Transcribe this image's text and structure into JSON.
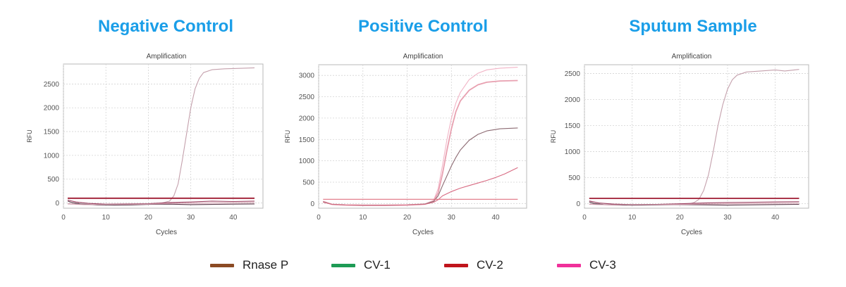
{
  "panels": [
    {
      "title": "Negative Control",
      "chart_data": {
        "type": "line",
        "title": "Amplification",
        "xlabel": "Cycles",
        "ylabel": "RFU",
        "xlim": [
          0,
          47
        ],
        "ylim": [
          -110,
          2920
        ],
        "xticks": [
          0,
          10,
          20,
          30,
          40
        ],
        "yticks": [
          0,
          500,
          1000,
          1500,
          2000,
          2500
        ],
        "grid": true,
        "series": [
          {
            "color": "#c4a0ac",
            "values": [
              [
                1,
                -15
              ],
              [
                5,
                -30
              ],
              [
                10,
                -40
              ],
              [
                15,
                -35
              ],
              [
                20,
                -20
              ],
              [
                23,
                -5
              ],
              [
                25,
                40
              ],
              [
                26,
                150
              ],
              [
                27,
                400
              ],
              [
                28,
                900
              ],
              [
                29,
                1450
              ],
              [
                30,
                2000
              ],
              [
                31,
                2400
              ],
              [
                32,
                2620
              ],
              [
                33,
                2740
              ],
              [
                35,
                2800
              ],
              [
                38,
                2820
              ],
              [
                42,
                2830
              ],
              [
                45,
                2840
              ]
            ]
          },
          {
            "color": "#9e1a30",
            "values": [
              [
                1,
                100
              ],
              [
                10,
                100
              ],
              [
                20,
                100
              ],
              [
                30,
                100
              ],
              [
                40,
                100
              ],
              [
                45,
                100
              ]
            ]
          },
          {
            "color": "#5a3a4a",
            "values": [
              [
                1,
                40
              ],
              [
                2,
                10
              ],
              [
                4,
                -20
              ],
              [
                8,
                -40
              ],
              [
                12,
                -45
              ],
              [
                16,
                -40
              ],
              [
                20,
                -30
              ],
              [
                25,
                -25
              ],
              [
                30,
                -35
              ],
              [
                35,
                -30
              ],
              [
                40,
                -25
              ],
              [
                45,
                -20
              ]
            ]
          },
          {
            "color": "#9a4060",
            "values": [
              [
                1,
                60
              ],
              [
                3,
                20
              ],
              [
                6,
                -10
              ],
              [
                10,
                -25
              ],
              [
                15,
                -20
              ],
              [
                20,
                -15
              ],
              [
                25,
                10
              ],
              [
                30,
                20
              ],
              [
                35,
                40
              ],
              [
                40,
                30
              ],
              [
                45,
                40
              ]
            ]
          },
          {
            "color": "#d6a0b0",
            "values": [
              [
                1,
                -20
              ],
              [
                5,
                -35
              ],
              [
                10,
                -30
              ],
              [
                15,
                -28
              ],
              [
                20,
                -25
              ],
              [
                25,
                -10
              ],
              [
                30,
                -5
              ],
              [
                35,
                0
              ],
              [
                40,
                5
              ],
              [
                45,
                8
              ]
            ]
          }
        ]
      }
    },
    {
      "title": "Positive Control",
      "chart_data": {
        "type": "line",
        "title": "Amplification",
        "xlabel": "Cycles",
        "ylabel": "RFU",
        "xlim": [
          0,
          47
        ],
        "ylim": [
          -110,
          3250
        ],
        "xticks": [
          0,
          10,
          20,
          30,
          40
        ],
        "yticks": [
          0,
          500,
          1000,
          1500,
          2000,
          2500,
          3000
        ],
        "grid": true,
        "series": [
          {
            "color": "#f2b4c6",
            "values": [
              [
                1,
                50
              ],
              [
                3,
                -20
              ],
              [
                6,
                -35
              ],
              [
                10,
                -40
              ],
              [
                15,
                -40
              ],
              [
                20,
                -35
              ],
              [
                24,
                -15
              ],
              [
                26,
                80
              ],
              [
                27,
                350
              ],
              [
                28,
                900
              ],
              [
                29,
                1500
              ],
              [
                30,
                2000
              ],
              [
                31,
                2350
              ],
              [
                32,
                2600
              ],
              [
                34,
                2900
              ],
              [
                36,
                3050
              ],
              [
                38,
                3130
              ],
              [
                41,
                3170
              ],
              [
                45,
                3190
              ]
            ]
          },
          {
            "color": "#e8a0b0",
            "values": [
              [
                1,
                50
              ],
              [
                3,
                -20
              ],
              [
                6,
                -35
              ],
              [
                10,
                -40
              ],
              [
                15,
                -40
              ],
              [
                20,
                -35
              ],
              [
                24,
                -15
              ],
              [
                26,
                60
              ],
              [
                27,
                250
              ],
              [
                28,
                700
              ],
              [
                29,
                1250
              ],
              [
                30,
                1750
              ],
              [
                31,
                2150
              ],
              [
                32,
                2400
              ],
              [
                34,
                2650
              ],
              [
                36,
                2780
              ],
              [
                38,
                2840
              ],
              [
                41,
                2870
              ],
              [
                45,
                2880
              ]
            ]
          },
          {
            "color": "#8c6a72",
            "values": [
              [
                1,
                40
              ],
              [
                3,
                -20
              ],
              [
                6,
                -35
              ],
              [
                10,
                -40
              ],
              [
                15,
                -40
              ],
              [
                20,
                -35
              ],
              [
                24,
                -15
              ],
              [
                26,
                50
              ],
              [
                27,
                180
              ],
              [
                28,
                420
              ],
              [
                29,
                650
              ],
              [
                30,
                880
              ],
              [
                31,
                1080
              ],
              [
                32,
                1250
              ],
              [
                34,
                1480
              ],
              [
                36,
                1620
              ],
              [
                38,
                1700
              ],
              [
                41,
                1750
              ],
              [
                45,
                1770
              ]
            ]
          },
          {
            "color": "#d86a82",
            "values": [
              [
                1,
                30
              ],
              [
                3,
                -20
              ],
              [
                6,
                -35
              ],
              [
                10,
                -40
              ],
              [
                15,
                -40
              ],
              [
                20,
                -35
              ],
              [
                24,
                -20
              ],
              [
                26,
                30
              ],
              [
                27,
                90
              ],
              [
                28,
                180
              ],
              [
                30,
                280
              ],
              [
                32,
                360
              ],
              [
                34,
                420
              ],
              [
                36,
                480
              ],
              [
                38,
                540
              ],
              [
                40,
                610
              ],
              [
                42,
                690
              ],
              [
                45,
                840
              ]
            ]
          },
          {
            "color": "#e07080",
            "values": [
              [
                1,
                100
              ],
              [
                10,
                100
              ],
              [
                20,
                100
              ],
              [
                30,
                100
              ],
              [
                40,
                100
              ],
              [
                45,
                100
              ]
            ]
          }
        ]
      }
    },
    {
      "title": "Sputum Sample",
      "chart_data": {
        "type": "line",
        "title": "Amplification",
        "xlabel": "Cycles",
        "ylabel": "RFU",
        "xlim": [
          0,
          47
        ],
        "ylim": [
          -90,
          2670
        ],
        "xticks": [
          0,
          10,
          20,
          30,
          40
        ],
        "yticks": [
          0,
          500,
          1000,
          1500,
          2000,
          2500
        ],
        "grid": true,
        "series": [
          {
            "color": "#c4a0ac",
            "values": [
              [
                1,
                -10
              ],
              [
                5,
                -25
              ],
              [
                10,
                -30
              ],
              [
                15,
                -25
              ],
              [
                20,
                -15
              ],
              [
                22,
                -5
              ],
              [
                23,
                20
              ],
              [
                24,
                80
              ],
              [
                25,
                250
              ],
              [
                26,
                550
              ],
              [
                27,
                1000
              ],
              [
                28,
                1500
              ],
              [
                29,
                1900
              ],
              [
                30,
                2200
              ],
              [
                31,
                2380
              ],
              [
                32,
                2470
              ],
              [
                34,
                2530
              ],
              [
                37,
                2550
              ],
              [
                40,
                2570
              ],
              [
                42,
                2550
              ],
              [
                45,
                2580
              ]
            ]
          },
          {
            "color": "#9e1a30",
            "values": [
              [
                1,
                100
              ],
              [
                10,
                100
              ],
              [
                20,
                100
              ],
              [
                30,
                100
              ],
              [
                40,
                100
              ],
              [
                45,
                100
              ]
            ]
          },
          {
            "color": "#5a3a4a",
            "values": [
              [
                1,
                30
              ],
              [
                2,
                0
              ],
              [
                4,
                -20
              ],
              [
                8,
                -30
              ],
              [
                12,
                -30
              ],
              [
                16,
                -25
              ],
              [
                20,
                -20
              ],
              [
                25,
                -25
              ],
              [
                30,
                -30
              ],
              [
                35,
                -25
              ],
              [
                40,
                -20
              ],
              [
                45,
                -15
              ]
            ]
          },
          {
            "color": "#9a4060",
            "values": [
              [
                1,
                50
              ],
              [
                3,
                10
              ],
              [
                6,
                -10
              ],
              [
                10,
                -20
              ],
              [
                15,
                -15
              ],
              [
                20,
                -5
              ],
              [
                25,
                10
              ],
              [
                30,
                20
              ],
              [
                35,
                25
              ],
              [
                40,
                30
              ],
              [
                45,
                35
              ]
            ]
          },
          {
            "color": "#d6a0b0",
            "values": [
              [
                1,
                -15
              ],
              [
                5,
                -25
              ],
              [
                10,
                -20
              ],
              [
                15,
                -20
              ],
              [
                20,
                -18
              ],
              [
                25,
                -10
              ],
              [
                30,
                -5
              ],
              [
                35,
                0
              ],
              [
                40,
                5
              ],
              [
                45,
                5
              ]
            ]
          }
        ]
      }
    }
  ],
  "legend": [
    {
      "label": "Rnase P",
      "color": "#8b4a24"
    },
    {
      "label": "CV-1",
      "color": "#1e9b55"
    },
    {
      "label": "CV-2",
      "color": "#c0141c"
    },
    {
      "label": "CV-3",
      "color": "#f0309a"
    }
  ]
}
